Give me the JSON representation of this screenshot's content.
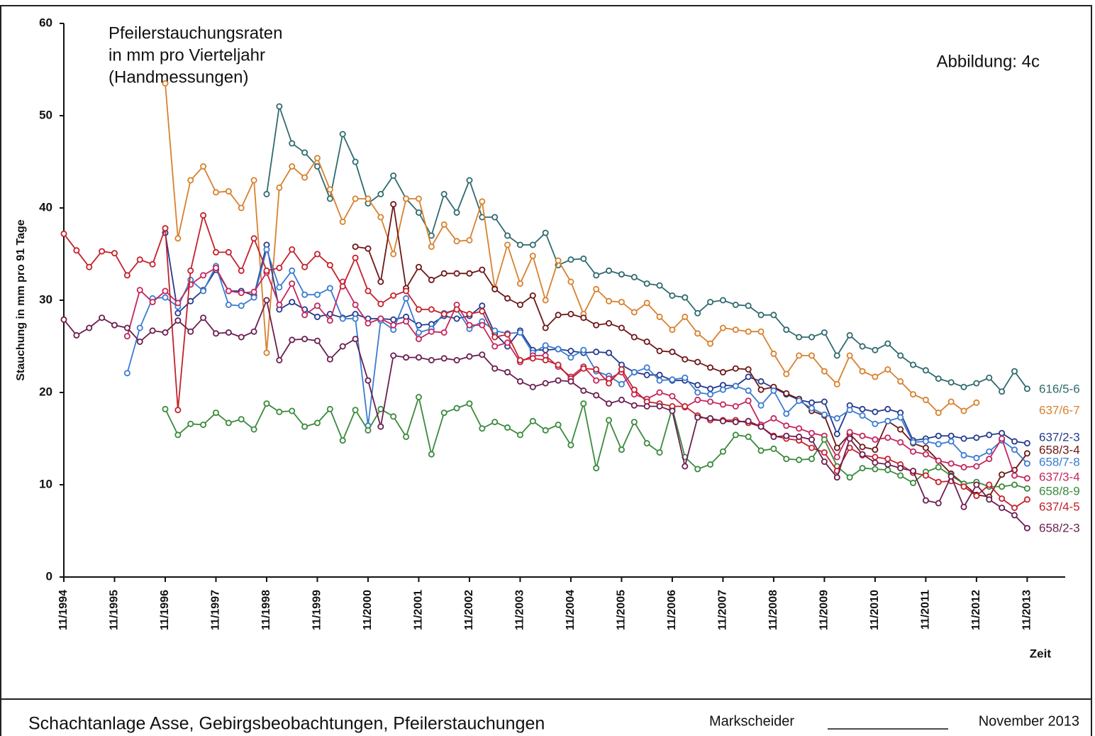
{
  "chart_data": {
    "type": "line",
    "title": [
      "Pfeilerstauchungsraten",
      "in mm pro Vierteljahr",
      "(Handmessungen)"
    ],
    "annotation": "Abbildung: 4c",
    "ylabel": "Stauchung in mm pro 91 Tage",
    "xlabel": "Zeit",
    "x": [
      0,
      1,
      2,
      3,
      4,
      5,
      6,
      7,
      8,
      9,
      10,
      11,
      12,
      13,
      14,
      15,
      16,
      17,
      18,
      19,
      20,
      21,
      22,
      23,
      24,
      25,
      26,
      27,
      28,
      29,
      30,
      31,
      32,
      33,
      34,
      35,
      36,
      37,
      38,
      39,
      40,
      41,
      42,
      43,
      44,
      45,
      46,
      47,
      48,
      49,
      50,
      51,
      52,
      53,
      54,
      55,
      56,
      57,
      58,
      59,
      60,
      61,
      62,
      63,
      64,
      65,
      66,
      67,
      68,
      69,
      70,
      71,
      72,
      73,
      74,
      75,
      76
    ],
    "xlim": [
      0,
      79
    ],
    "xticks": [
      {
        "value": 0,
        "label": "11/1994"
      },
      {
        "value": 4,
        "label": "11/1995"
      },
      {
        "value": 8,
        "label": "11/1996"
      },
      {
        "value": 12,
        "label": "11/1997"
      },
      {
        "value": 16,
        "label": "11/1998"
      },
      {
        "value": 20,
        "label": "11/1999"
      },
      {
        "value": 24,
        "label": "11/2000"
      },
      {
        "value": 28,
        "label": "11/2001"
      },
      {
        "value": 32,
        "label": "11/2002"
      },
      {
        "value": 36,
        "label": "11/2003"
      },
      {
        "value": 40,
        "label": "11/2004"
      },
      {
        "value": 44,
        "label": "11/2005"
      },
      {
        "value": 48,
        "label": "11/2006"
      },
      {
        "value": 52,
        "label": "11/2007"
      },
      {
        "value": 56,
        "label": "11/2008"
      },
      {
        "value": 60,
        "label": "11/2009"
      },
      {
        "value": 64,
        "label": "11/2010"
      },
      {
        "value": 68,
        "label": "11/2011"
      },
      {
        "value": 72,
        "label": "11/2012"
      },
      {
        "value": 76,
        "label": "11/2013"
      }
    ],
    "ylim": [
      0,
      60
    ],
    "yticks": [
      0,
      10,
      20,
      30,
      40,
      50,
      60
    ],
    "grid": false,
    "series": [
      {
        "name": "616/5-6",
        "color": "#2f6a6e",
        "values": [
          null,
          null,
          null,
          null,
          null,
          null,
          null,
          null,
          null,
          null,
          null,
          null,
          null,
          null,
          null,
          null,
          41.5,
          51,
          47,
          46,
          44.5,
          41,
          48,
          45,
          40.5,
          41.5,
          43.5,
          41,
          39.5,
          37,
          41.5,
          39.5,
          43,
          39,
          39,
          37,
          36,
          36,
          37.3,
          33.8,
          34.4,
          34.5,
          32.7,
          33.2,
          32.8,
          32.5,
          31.8,
          31.6,
          30.5,
          30.3,
          28.6,
          29.8,
          30,
          29.5,
          29.4,
          28.4,
          28.4,
          26.8,
          26,
          26,
          26.5,
          24,
          26.2,
          25,
          24.6,
          25.3,
          24,
          23,
          22.4,
          21.5,
          21.1,
          20.6,
          21,
          21.6,
          20.1,
          22.3,
          20.4
        ]
      },
      {
        "name": "637/6-7",
        "color": "#d8812e",
        "values": [
          null,
          null,
          null,
          null,
          null,
          null,
          null,
          null,
          53.5,
          36.7,
          43,
          44.5,
          41.7,
          41.8,
          40,
          43,
          24.3,
          42.2,
          44.5,
          43.3,
          45.4,
          42,
          38.5,
          41,
          41,
          39,
          35,
          41,
          41,
          35.8,
          38.2,
          36.4,
          36.5,
          40.7,
          31.3,
          36,
          31.8,
          34.8,
          30,
          34.3,
          32,
          28.5,
          31.2,
          29.9,
          29.8,
          28.7,
          29.7,
          28.2,
          26.8,
          28.2,
          26.4,
          25.3,
          27,
          26.8,
          26.6,
          26.6,
          24.2,
          22,
          24,
          24,
          22.3,
          20.9,
          24,
          22.3,
          21.7,
          22.5,
          21.2,
          19.8,
          19.2,
          17.8,
          19,
          18,
          18.9,
          null,
          null,
          null,
          null
        ]
      },
      {
        "name": "637/2-3",
        "color": "#243a8e",
        "values": [
          null,
          null,
          null,
          null,
          null,
          null,
          null,
          null,
          37.3,
          28.6,
          29.9,
          31.1,
          33.3,
          31,
          31,
          30.5,
          36,
          29,
          29.8,
          29,
          28.2,
          28.5,
          28.1,
          28.5,
          28,
          28,
          27.9,
          28.2,
          27.3,
          27.4,
          28.3,
          28,
          28.3,
          29.4,
          26.4,
          25,
          26.7,
          24.6,
          24.6,
          24.7,
          24.5,
          24.3,
          24.4,
          24.3,
          23,
          22.2,
          21.9,
          21.9,
          21.3,
          21.3,
          20.8,
          20.4,
          20.8,
          20.7,
          21.7,
          21.2,
          20.5,
          19.8,
          19.2,
          18.9,
          19,
          15.5,
          18.6,
          18.2,
          17.9,
          18.2,
          17.8,
          14.8,
          15,
          15.3,
          15.3,
          15,
          15.1,
          15.4,
          15.6,
          14.7,
          14.5
        ]
      },
      {
        "name": "658/3-4",
        "color": "#6e1616",
        "values": [
          null,
          null,
          null,
          null,
          null,
          null,
          null,
          null,
          null,
          null,
          null,
          null,
          null,
          null,
          null,
          null,
          null,
          null,
          null,
          null,
          null,
          null,
          null,
          35.8,
          35.6,
          32,
          40.4,
          31.3,
          33.6,
          32.2,
          32.9,
          32.9,
          32.9,
          33.3,
          31.2,
          30.2,
          29.5,
          30.5,
          27,
          28.4,
          28.5,
          28.1,
          27.3,
          27.5,
          27,
          26,
          25.5,
          24.5,
          24.4,
          23.6,
          23.3,
          22.7,
          22.2,
          22.6,
          22.5,
          20.3,
          20.6,
          19.9,
          19.3,
          18,
          17.5,
          14,
          15.5,
          14.1,
          13.8,
          16.9,
          16,
          14.5,
          14,
          12.6,
          11.2,
          10.1,
          8.9,
          8.7,
          11.1,
          11.6,
          13.4
        ]
      },
      {
        "name": "658/7-8",
        "color": "#3b7bd1",
        "values": [
          null,
          null,
          null,
          null,
          null,
          22.1,
          27,
          30.2,
          30.3,
          29.3,
          32.2,
          31,
          33.7,
          29.5,
          29.4,
          30.3,
          35.5,
          31.4,
          33.2,
          30.6,
          30.6,
          31.3,
          28,
          28,
          16.4,
          27.8,
          26.8,
          30.2,
          26.5,
          26.9,
          28.6,
          29,
          26.9,
          27.7,
          26.7,
          26.4,
          26.5,
          24.3,
          25.1,
          24.7,
          23.8,
          24.6,
          22.3,
          21.8,
          20.9,
          22.2,
          22.7,
          21.3,
          21.4,
          21.6,
          20,
          19.8,
          20.3,
          20.7,
          20.2,
          18.6,
          20.2,
          17.7,
          19.1,
          18.3,
          17.6,
          17.2,
          18.1,
          17.5,
          16.6,
          16.9,
          17.3,
          14.6,
          14.7,
          14.4,
          14.7,
          13.2,
          12.9,
          13.6,
          14.8,
          13.8,
          12.3
        ]
      },
      {
        "name": "637/3-4",
        "color": "#c3265e",
        "values": [
          null,
          null,
          null,
          null,
          null,
          26.1,
          31.1,
          29.8,
          31,
          29.7,
          31.7,
          32.7,
          33.5,
          31,
          30.8,
          30.9,
          33,
          29.5,
          31.8,
          28.4,
          29.4,
          27.8,
          32,
          29.5,
          27.5,
          28,
          27.3,
          27.7,
          25.8,
          26.6,
          26.5,
          29.5,
          27.3,
          27.3,
          25,
          25.4,
          23.3,
          24,
          24,
          22.8,
          21.7,
          22.8,
          21.3,
          21.5,
          22.2,
          19.8,
          19.3,
          20,
          19.6,
          18.4,
          19.2,
          19,
          18.7,
          18.5,
          19.1,
          16.5,
          17.2,
          16.4,
          16.1,
          15.6,
          15.3,
          13,
          15.7,
          15.3,
          14.9,
          15.1,
          14.6,
          13.6,
          13.3,
          12.6,
          12.3,
          11.9,
          12,
          12.8,
          15,
          11,
          10.7
        ]
      },
      {
        "name": "658/8-9",
        "color": "#3a8a3c",
        "values": [
          null,
          null,
          null,
          null,
          null,
          null,
          null,
          null,
          18.2,
          15.4,
          16.6,
          16.5,
          17.8,
          16.7,
          17.1,
          16,
          18.8,
          17.9,
          18,
          16.3,
          16.7,
          18.2,
          14.8,
          18.1,
          15.9,
          18.2,
          17.4,
          15.2,
          19.5,
          13.3,
          17.8,
          18.3,
          18.8,
          16.1,
          16.8,
          16.2,
          15.4,
          16.9,
          15.9,
          16.5,
          14.3,
          18.8,
          11.8,
          17,
          13.8,
          16.8,
          14.5,
          13.5,
          18.3,
          13,
          11.7,
          12.2,
          13.6,
          15.4,
          15.2,
          13.7,
          13.9,
          12.8,
          12.7,
          12.8,
          14.9,
          12,
          10.8,
          11.8,
          11.7,
          11.6,
          11,
          10.2,
          11.4,
          11.9,
          11,
          10.1,
          10.3,
          9.8,
          9.8,
          10,
          9.6
        ]
      },
      {
        "name": "637/4-5",
        "color": "#c4212b",
        "values": [
          37.2,
          35.4,
          33.6,
          35.3,
          35.1,
          32.7,
          34.4,
          33.9,
          37.8,
          18.1,
          33.2,
          39.2,
          35.2,
          35.2,
          33.2,
          36.7,
          33.2,
          33.5,
          35.5,
          33.6,
          35,
          33.8,
          31.5,
          34.6,
          31,
          29.6,
          30.5,
          31,
          29,
          29,
          28.5,
          29,
          28.5,
          28.8,
          26,
          26.3,
          23.5,
          23.7,
          23.5,
          23,
          21.5,
          22.6,
          22.5,
          21,
          22.5,
          20.3,
          19,
          18.8,
          18.5,
          18.5,
          17.5,
          17,
          17,
          17,
          16.7,
          16.3,
          15.3,
          15,
          14.8,
          14,
          13.5,
          11.5,
          14,
          13.2,
          13,
          12.8,
          12.2,
          11.3,
          11,
          10.3,
          10.4,
          9.8,
          8.8,
          10,
          8.5,
          7.5,
          8.4
        ]
      },
      {
        "name": "658/2-3",
        "color": "#6a1e50",
        "values": [
          27.9,
          26.2,
          27,
          28.1,
          27.3,
          27,
          25.5,
          26.7,
          26.5,
          27.8,
          26.6,
          28.1,
          26.4,
          26.5,
          26,
          26.6,
          30,
          23.5,
          25.7,
          25.8,
          25.6,
          23.6,
          25,
          25.8,
          21.3,
          16.3,
          24,
          23.8,
          23.8,
          23.5,
          23.7,
          23.5,
          23.9,
          24.1,
          22.6,
          22.2,
          21.2,
          20.6,
          21,
          21.3,
          21.2,
          20.2,
          19.7,
          18.8,
          19.2,
          18.6,
          18.5,
          18.5,
          18,
          12,
          17.3,
          17.2,
          16.9,
          16.8,
          16.9,
          16.3,
          15.2,
          15.3,
          15.2,
          14.9,
          12.5,
          10.8,
          15,
          13.3,
          12.4,
          12.2,
          11.8,
          11.5,
          8.3,
          8,
          10.9,
          7.6,
          10,
          8.4,
          7.5,
          6.7,
          5.3
        ]
      }
    ]
  },
  "footer": {
    "project": "Schachtanlage Asse, Gebirgsbeobachtungen, Pfeilerstauchungen",
    "signature_label": "Markscheider",
    "date": "November 2013"
  }
}
